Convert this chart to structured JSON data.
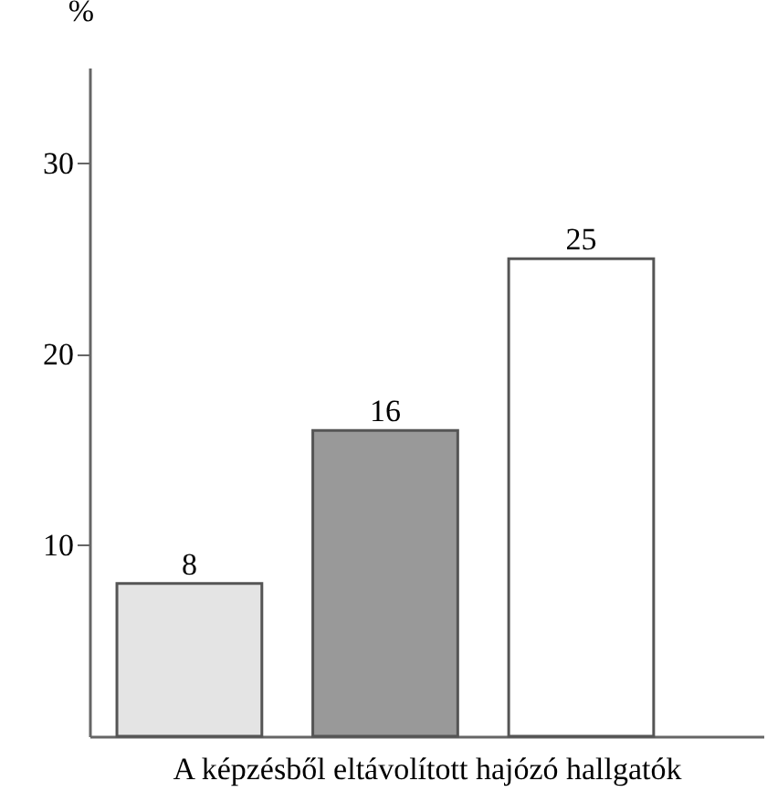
{
  "chart_data": {
    "type": "bar",
    "xlabel": "A képzésből eltávolított hajózó hallgatók",
    "ylabel": "%",
    "categories": [
      null,
      null,
      null
    ],
    "values": [
      8,
      16,
      25
    ],
    "colors": [
      "#e4e4e4",
      "#999999",
      "#ffffff"
    ],
    "ylim": [
      0,
      35
    ],
    "yticks": [
      10,
      20,
      30
    ],
    "grid": false,
    "data_labels": true,
    "tick_labels": "y"
  }
}
